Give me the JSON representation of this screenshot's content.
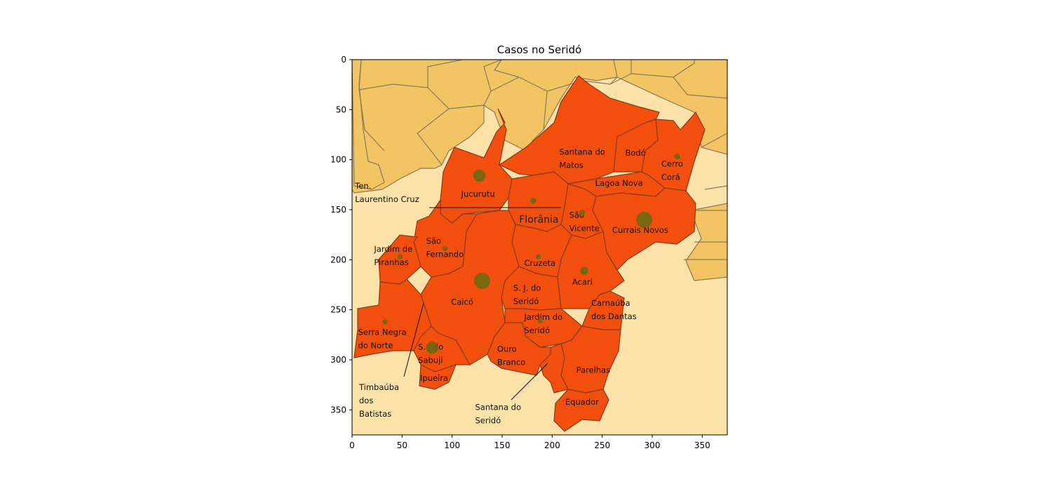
{
  "chart_data": {
    "type": "scatter",
    "title": "Casos no Seridó",
    "xlim": [
      0,
      375
    ],
    "ylim": [
      375,
      0
    ],
    "xticks": [
      0,
      50,
      100,
      150,
      200,
      250,
      300,
      350
    ],
    "yticks": [
      0,
      50,
      100,
      150,
      200,
      250,
      300,
      350
    ],
    "points": [
      {
        "x": 127,
        "y": 116,
        "size": 12
      },
      {
        "x": 181,
        "y": 141,
        "size": 6
      },
      {
        "x": 325,
        "y": 97,
        "size": 6
      },
      {
        "x": 230,
        "y": 153,
        "size": 6
      },
      {
        "x": 292,
        "y": 160,
        "size": 16
      },
      {
        "x": 93,
        "y": 189,
        "size": 5
      },
      {
        "x": 48,
        "y": 197,
        "size": 5
      },
      {
        "x": 186,
        "y": 197,
        "size": 5
      },
      {
        "x": 232,
        "y": 211,
        "size": 8
      },
      {
        "x": 130,
        "y": 221,
        "size": 16
      },
      {
        "x": 188,
        "y": 261,
        "size": 5
      },
      {
        "x": 33,
        "y": 262,
        "size": 5
      },
      {
        "x": 80,
        "y": 288,
        "size": 12
      }
    ]
  },
  "map_labels": [
    {
      "id": "santana-do-matos",
      "lines": [
        "Santana do",
        "Matos"
      ],
      "x": 207,
      "y": 95
    },
    {
      "id": "bodo",
      "lines": [
        "Bodó"
      ],
      "x": 273,
      "y": 96
    },
    {
      "id": "cerro-cora",
      "lines": [
        "Cerro",
        "Corá"
      ],
      "x": 309,
      "y": 107
    },
    {
      "id": "lagoa-nova",
      "lines": [
        "Lagoa Nova"
      ],
      "x": 243,
      "y": 126
    },
    {
      "id": "ten-laurentino-cruz",
      "lines": [
        "Ten.",
        "Laurentino Cruz"
      ],
      "x": 3,
      "y": 129
    },
    {
      "id": "jucurutu",
      "lines": [
        "Jucurutu"
      ],
      "x": 109,
      "y": 137
    },
    {
      "id": "florania",
      "lines": [
        "Florânia"
      ],
      "x": 167,
      "y": 163,
      "big": true
    },
    {
      "id": "sao-vicente",
      "lines": [
        "São",
        "Vicente"
      ],
      "x": 217,
      "y": 158
    },
    {
      "id": "currais-novos",
      "lines": [
        "Currais Novos"
      ],
      "x": 260,
      "y": 173
    },
    {
      "id": "sao-fernando",
      "lines": [
        "São",
        "Fernando"
      ],
      "x": 74,
      "y": 184
    },
    {
      "id": "jardim-de-piranhas",
      "lines": [
        "Jardim de",
        "Piranhas"
      ],
      "x": 22,
      "y": 192
    },
    {
      "id": "cruzeta",
      "lines": [
        "Cruzeta"
      ],
      "x": 172,
      "y": 206
    },
    {
      "id": "acari",
      "lines": [
        "Acari"
      ],
      "x": 220,
      "y": 225
    },
    {
      "id": "sj-do-serido",
      "lines": [
        "S. J. do",
        "Seridó"
      ],
      "x": 161,
      "y": 231
    },
    {
      "id": "caico",
      "lines": [
        "Caicó"
      ],
      "x": 99,
      "y": 245
    },
    {
      "id": "carnauba-dos-dantas",
      "lines": [
        "Carnaúba",
        "dos Dantas"
      ],
      "x": 239,
      "y": 246
    },
    {
      "id": "jardim-do-serido",
      "lines": [
        "Jardim do",
        "Seridó"
      ],
      "x": 172,
      "y": 260
    },
    {
      "id": "serra-negra-do-norte",
      "lines": [
        "Serra Negra",
        "do Norte"
      ],
      "x": 6,
      "y": 275
    },
    {
      "id": "sj-do-sabuji",
      "lines": [
        "S. J do",
        "Sabuji"
      ],
      "x": 66,
      "y": 290
    },
    {
      "id": "ouro-branco",
      "lines": [
        "Ouro",
        "Branco"
      ],
      "x": 145,
      "y": 292
    },
    {
      "id": "parelhas",
      "lines": [
        "Parelhas"
      ],
      "x": 224,
      "y": 313
    },
    {
      "id": "ipueira",
      "lines": [
        "Ipueira"
      ],
      "x": 68,
      "y": 321
    },
    {
      "id": "timbauba-dos-batistas",
      "lines": [
        "Timbaúba",
        "dos",
        "Batistas"
      ],
      "x": 7,
      "y": 330
    },
    {
      "id": "santana-do-serido",
      "lines": [
        "Santana do",
        "Seridó"
      ],
      "x": 123,
      "y": 350
    },
    {
      "id": "equador",
      "lines": [
        "Equador"
      ],
      "x": 213,
      "y": 345
    }
  ]
}
